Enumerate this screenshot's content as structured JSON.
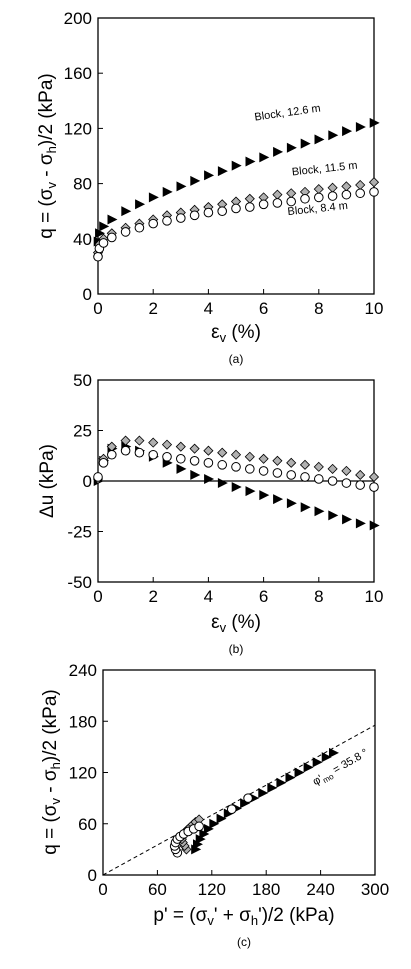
{
  "figure": {
    "captions": [
      "(a)",
      "(b)",
      "(c)"
    ]
  },
  "chart_data": [
    {
      "type": "scatter",
      "panel": "(a)",
      "ylabel": "q = (σv - σh)/2 (kPa)",
      "xlabel": "εv (%)",
      "xlim": [
        0,
        10
      ],
      "ylim": [
        0,
        200
      ],
      "xticks": [
        0,
        2,
        4,
        6,
        8,
        10
      ],
      "yticks": [
        0,
        40,
        80,
        120,
        160,
        200
      ],
      "grid": false,
      "series": [
        {
          "name": "Block, 12.6 m",
          "marker": "triangle-right",
          "fill": "#000000",
          "x": [
            0.0,
            0.05,
            0.2,
            0.5,
            1.0,
            1.5,
            2.0,
            2.5,
            3.0,
            3.5,
            4.0,
            4.5,
            5.0,
            5.5,
            6.0,
            6.5,
            7.0,
            7.5,
            8.0,
            8.5,
            9.0,
            9.5,
            10.0
          ],
          "y": [
            38,
            44,
            49,
            54,
            60,
            65,
            70,
            74,
            78,
            82,
            86,
            89,
            93,
            96,
            99,
            103,
            106,
            109,
            112,
            115,
            118,
            121,
            124
          ]
        },
        {
          "name": "Block, 11.5 m",
          "marker": "diamond",
          "fill": "#b0b0b0",
          "x": [
            0.0,
            0.05,
            0.2,
            0.5,
            1.0,
            1.5,
            2.0,
            2.5,
            3.0,
            3.5,
            4.0,
            4.5,
            5.0,
            5.5,
            6.0,
            6.5,
            7.0,
            7.5,
            8.0,
            8.5,
            9.0,
            9.5,
            10.0
          ],
          "y": [
            30,
            36,
            40,
            44,
            48,
            51,
            54,
            57,
            59,
            61,
            63,
            65,
            67,
            69,
            70,
            72,
            73,
            74,
            76,
            77,
            78,
            79,
            81
          ]
        },
        {
          "name": "Block, 8.4 m",
          "marker": "circle",
          "fill": "#ffffff",
          "x": [
            0.0,
            0.05,
            0.2,
            0.5,
            1.0,
            1.5,
            2.0,
            2.5,
            3.0,
            3.5,
            4.0,
            4.5,
            5.0,
            5.5,
            6.0,
            6.5,
            7.0,
            7.5,
            8.0,
            8.5,
            9.0,
            9.5,
            10.0
          ],
          "y": [
            27,
            33,
            37,
            41,
            45,
            48,
            51,
            53,
            55,
            57,
            59,
            60,
            62,
            63,
            65,
            66,
            67,
            69,
            70,
            71,
            72,
            73,
            74
          ]
        }
      ],
      "annotations": [
        "Block, 12.6 m",
        "Block, 11.5 m",
        "Block, 8.4 m"
      ]
    },
    {
      "type": "scatter",
      "panel": "(b)",
      "ylabel": "Δu (kPa)",
      "xlabel": "εv (%)",
      "xlim": [
        0,
        10
      ],
      "ylim": [
        -50,
        50
      ],
      "xticks": [
        0,
        2,
        4,
        6,
        8,
        10
      ],
      "yticks": [
        -50,
        -25,
        0,
        25,
        50
      ],
      "grid": false,
      "zero_line": true,
      "series": [
        {
          "name": "Block, 12.6 m",
          "marker": "triangle-right",
          "fill": "#000000",
          "x": [
            0.0,
            0.2,
            0.5,
            1.0,
            1.5,
            2.0,
            2.5,
            3.0,
            3.5,
            4.0,
            4.5,
            5.0,
            5.5,
            6.0,
            6.5,
            7.0,
            7.5,
            8.0,
            8.5,
            9.0,
            9.5,
            10.0
          ],
          "y": [
            0,
            10,
            16,
            17,
            15,
            12,
            9,
            6,
            3,
            1,
            -1,
            -3,
            -5,
            -7,
            -9,
            -11,
            -13,
            -15,
            -17,
            -19,
            -21,
            -22
          ]
        },
        {
          "name": "Block, 11.5 m",
          "marker": "diamond",
          "fill": "#b0b0b0",
          "x": [
            0.0,
            0.2,
            0.5,
            1.0,
            1.5,
            2.0,
            2.5,
            3.0,
            3.5,
            4.0,
            4.5,
            5.0,
            5.5,
            6.0,
            6.5,
            7.0,
            7.5,
            8.0,
            8.5,
            9.0,
            9.5,
            10.0
          ],
          "y": [
            1,
            11,
            17,
            20,
            20,
            19,
            18,
            17,
            16,
            15,
            14,
            13,
            12,
            11,
            10,
            9,
            8,
            7,
            6,
            5,
            3,
            2
          ]
        },
        {
          "name": "Block, 8.4 m",
          "marker": "circle",
          "fill": "#ffffff",
          "x": [
            0.0,
            0.2,
            0.5,
            1.0,
            1.5,
            2.0,
            2.5,
            3.0,
            3.5,
            4.0,
            4.5,
            5.0,
            5.5,
            6.0,
            6.5,
            7.0,
            7.5,
            8.0,
            8.5,
            9.0,
            9.5,
            10.0
          ],
          "y": [
            2,
            9,
            13,
            15,
            14,
            13,
            12,
            11,
            10,
            9,
            8,
            7,
            6,
            5,
            4,
            3,
            2,
            1,
            0,
            -1,
            -2,
            -3
          ]
        }
      ]
    },
    {
      "type": "scatter",
      "panel": "(c)",
      "ylabel": "q = (σv - σh)/2 (kPa)",
      "xlabel": "p' = (σv' + σh')/2 (kPa)",
      "xlim": [
        0,
        300
      ],
      "ylim": [
        0,
        240
      ],
      "xticks": [
        0,
        60,
        120,
        180,
        240,
        300
      ],
      "yticks": [
        0,
        60,
        120,
        180,
        240
      ],
      "grid": false,
      "failure_line": {
        "label": "φ'mo = 35.8°",
        "x": [
          0,
          300
        ],
        "y": [
          0,
          175.4
        ]
      },
      "series": [
        {
          "name": "Block, 12.6 m",
          "marker": "triangle-right",
          "fill": "#000000",
          "x": [
            102,
            104,
            107,
            111,
            116,
            122,
            130,
            138,
            147,
            156,
            166,
            176,
            186,
            196,
            206,
            216,
            226,
            236,
            246,
            254
          ],
          "y": [
            30,
            36,
            42,
            48,
            54,
            60,
            66,
            72,
            78,
            84,
            90,
            96,
            102,
            108,
            114,
            120,
            126,
            132,
            138,
            143
          ]
        },
        {
          "name": "Block, 11.5 m",
          "marker": "diamond",
          "fill": "#b0b0b0",
          "x": [
            92,
            90,
            88,
            87,
            88,
            90,
            93,
            96,
            99,
            102,
            106
          ],
          "y": [
            30,
            34,
            38,
            42,
            46,
            50,
            53,
            56,
            59,
            62,
            65
          ]
        },
        {
          "name": "Block, 8.4 m",
          "marker": "circle",
          "fill": "#ffffff",
          "x": [
            82,
            80,
            79,
            80,
            82,
            85,
            89,
            94,
            100,
            106,
            142,
            160
          ],
          "y": [
            26,
            30,
            34,
            38,
            42,
            45,
            48,
            51,
            54,
            57,
            77,
            90
          ]
        }
      ]
    }
  ]
}
